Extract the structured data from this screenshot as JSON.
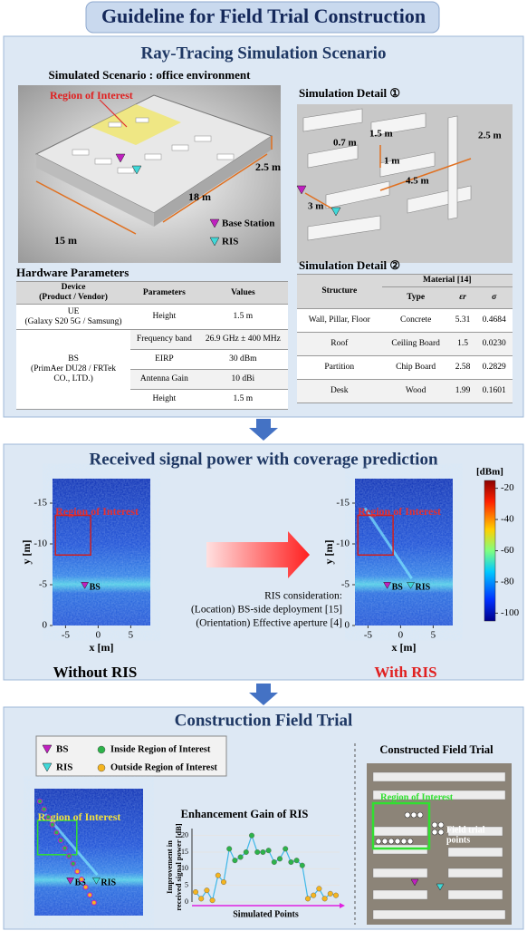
{
  "title": "Guideline for Field Trial Construction",
  "scenario": {
    "heading": "Ray-Tracing Simulation Scenario",
    "subheading": "Simulated Scenario : office environment",
    "roi": "Region of Interest",
    "height": "2.5 m",
    "length": "18 m",
    "width": "15 m",
    "bs": "Base Station",
    "ris": "RIS"
  },
  "detail1": {
    "heading": "Simulation Detail ①",
    "labels": [
      "1.5 m",
      "0.7 m",
      "1 m",
      "2.5 m",
      "4.5 m",
      "3 m"
    ]
  },
  "hardware": {
    "heading": "Hardware Parameters",
    "device_header": [
      "Device",
      "(Product / Vendor)"
    ],
    "columns": [
      "Parameters",
      "Values"
    ],
    "rows": [
      {
        "device": [
          "UE",
          "(Galaxy S20 5G / Samsung)"
        ],
        "params": [
          [
            "Height",
            "1.5 m"
          ]
        ]
      },
      {
        "device": [
          "BS",
          "(PrimAer DU28 / FRTek",
          "CO., LTD.)"
        ],
        "params": [
          [
            "Frequency band",
            "26.9 GHz ± 400 MHz"
          ],
          [
            "EIRP",
            "30 dBm"
          ],
          [
            "Antenna Gain",
            "10 dBi"
          ],
          [
            "Height",
            "1.5 m"
          ]
        ]
      }
    ]
  },
  "detail2": {
    "heading": "Simulation Detail ②",
    "structure": "Structure",
    "material": "Material [14]",
    "columns": [
      "Type",
      "εr",
      "σ"
    ],
    "rows": [
      [
        "Wall, Pillar, Floor",
        "Concrete",
        "5.31",
        "0.4684"
      ],
      [
        "Roof",
        "Ceiling Board",
        "1.5",
        "0.0230"
      ],
      [
        "Partition",
        "Chip Board",
        "2.58",
        "0.2829"
      ],
      [
        "Desk",
        "Wood",
        "1.99",
        "0.1601"
      ]
    ]
  },
  "coverage": {
    "heading": "Received signal power with coverage prediction",
    "colorbar_unit": "[dBm]",
    "cticks": [
      -20,
      -40,
      -60,
      -80,
      -100
    ],
    "clim": [
      -105,
      -15
    ],
    "x_label": "x [m]",
    "y_label": "y [m]",
    "xticks": [
      -5,
      0,
      5
    ],
    "yticks": [
      0,
      -5,
      -10,
      -15
    ],
    "xlim": [
      -7,
      8
    ],
    "ylim": [
      0,
      -18
    ],
    "roi": "Region of Interest",
    "bs": "BS",
    "ris": "RIS",
    "consideration": [
      "RIS consideration:",
      "(Location) BS-side deployment [15]",
      "(Orientation) Effective aperture [4]"
    ],
    "captions": [
      "Without RIS",
      "With RIS"
    ]
  },
  "field": {
    "heading": "Construction Field Trial",
    "bs": "BS",
    "ris": "RIS",
    "roi": "Region of Interest",
    "constructed": "Constructed Field Trial",
    "points": [
      "Field trial",
      "points"
    ]
  },
  "chart_data": {
    "type": "line",
    "title": "Enhancement Gain of RIS",
    "y_label": [
      "Improvement in",
      "received signal power [dB]"
    ],
    "x_label": "Simulated Points",
    "line_color": "#3fb8e8",
    "ylim": [
      0,
      21
    ],
    "yticks": [
      0,
      5,
      10,
      15,
      20
    ],
    "grid": true,
    "series": [
      {
        "name": "Inside Region of Interest",
        "color": "#2db34a",
        "values": [
          null,
          null,
          null,
          null,
          null,
          null,
          16,
          12.5,
          13.5,
          15,
          20,
          15,
          15,
          15.5,
          12,
          13,
          16,
          12,
          12.5,
          11,
          null,
          null,
          null,
          null,
          null,
          null
        ]
      },
      {
        "name": "Outside Region of Interest",
        "color": "#f5b51f",
        "values": [
          3,
          1,
          3.5,
          0.5,
          8,
          6,
          null,
          null,
          null,
          null,
          null,
          null,
          null,
          null,
          null,
          null,
          null,
          null,
          null,
          null,
          1,
          2,
          4,
          1,
          2.5,
          2
        ]
      }
    ]
  }
}
